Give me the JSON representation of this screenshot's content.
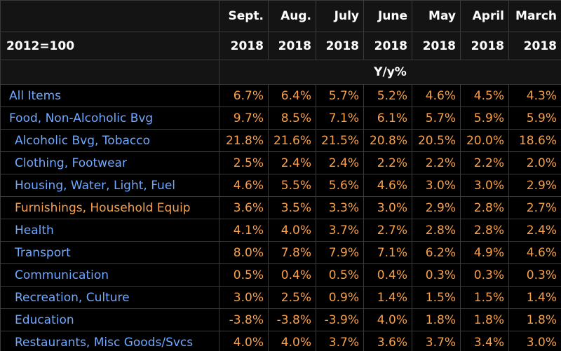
{
  "header": {
    "months": [
      "Sept.",
      "Aug.",
      "July",
      "June",
      "May",
      "April",
      "March"
    ],
    "base": "2012=100",
    "years": [
      "2018",
      "2018",
      "2018",
      "2018",
      "2018",
      "2018",
      "2018"
    ],
    "unit": "Y/y%"
  },
  "table": {
    "rows": [
      [
        "All Items",
        "6.7%",
        "6.4%",
        "5.7%",
        "5.2%",
        "4.6%",
        "4.5%",
        "4.3%"
      ],
      [
        "Food, Non-Alcoholic Bvg",
        "9.7%",
        "8.5%",
        "7.1%",
        "6.1%",
        "5.7%",
        "5.9%",
        "5.9%"
      ],
      [
        "Alcoholic Bvg, Tobacco",
        "21.8%",
        "21.6%",
        "21.5%",
        "20.8%",
        "20.5%",
        "20.0%",
        "18.6%"
      ],
      [
        "Clothing, Footwear",
        "2.5%",
        "2.4%",
        "2.4%",
        "2.2%",
        "2.2%",
        "2.2%",
        "2.0%"
      ],
      [
        "Housing, Water, Light, Fuel",
        "4.6%",
        "5.5%",
        "5.6%",
        "4.6%",
        "3.0%",
        "3.0%",
        "2.9%"
      ],
      [
        "Furnishings, Household Equip",
        "3.6%",
        "3.5%",
        "3.3%",
        "3.0%",
        "2.9%",
        "2.8%",
        "2.7%"
      ],
      [
        "Health",
        "4.1%",
        "4.0%",
        "3.7%",
        "2.7%",
        "2.8%",
        "2.8%",
        "2.4%"
      ],
      [
        "Transport",
        "8.0%",
        "7.8%",
        "7.9%",
        "7.1%",
        "6.2%",
        "4.9%",
        "4.6%"
      ],
      [
        "Communication",
        "0.5%",
        "0.4%",
        "0.5%",
        "0.4%",
        "0.3%",
        "0.3%",
        "0.3%"
      ],
      [
        "Recreation, Culture",
        "3.0%",
        "2.5%",
        "0.9%",
        "1.4%",
        "1.5%",
        "1.5%",
        "1.4%"
      ],
      [
        "Education",
        "-3.8%",
        "-3.8%",
        "-3.9%",
        "4.0%",
        "1.8%",
        "1.8%",
        "1.8%"
      ],
      [
        "Restaurants, Misc Goods/Svcs",
        "4.0%",
        "4.0%",
        "3.7%",
        "3.6%",
        "3.7%",
        "3.4%",
        "3.0%"
      ]
    ]
  }
}
